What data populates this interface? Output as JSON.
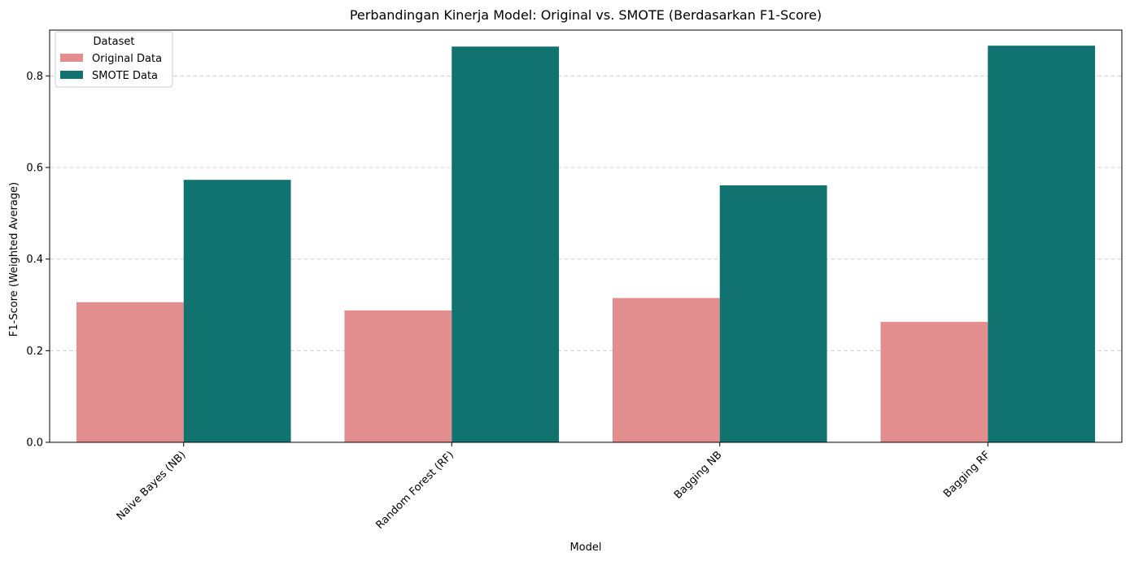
{
  "chart_data": {
    "type": "bar",
    "title": "Perbandingan Kinerja Model: Original vs. SMOTE (Berdasarkan F1-Score)",
    "xlabel": "Model",
    "ylabel": "F1-Score (Weighted Average)",
    "categories": [
      "Naive Bayes (NB)",
      "Random Forest (RF)",
      "Bagging NB",
      "Bagging RF"
    ],
    "series": [
      {
        "name": "Original Data",
        "color": "#e28e8e",
        "values": [
          0.306,
          0.288,
          0.315,
          0.263
        ]
      },
      {
        "name": "SMOTE Data",
        "color": "#117370",
        "values": [
          0.573,
          0.864,
          0.561,
          0.866
        ]
      }
    ],
    "ylim": [
      0,
      0.9
    ],
    "yticks": [
      0.0,
      0.2,
      0.4,
      0.6,
      0.8
    ],
    "ytick_labels": [
      "0.0",
      "0.2",
      "0.4",
      "0.6",
      "0.8"
    ],
    "grid": "y-dashed",
    "legend": {
      "title": "Dataset",
      "placement": "top-left"
    }
  }
}
